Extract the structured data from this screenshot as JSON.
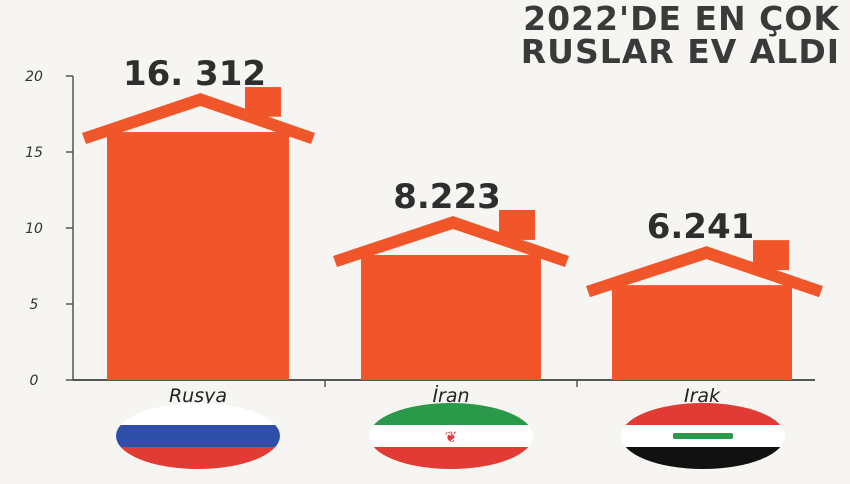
{
  "title_lines": [
    "2022'DE EN ÇOK",
    "RUSLAR EV ALDI"
  ],
  "chart_data": {
    "type": "bar",
    "title": "2022'DE EN ÇOK RUSLAR EV ALDI",
    "categories": [
      "Rusya",
      "İran",
      "Irak"
    ],
    "values": [
      16.312,
      8.223,
      6.241
    ],
    "value_labels": [
      "16. 312",
      "8.223",
      "6.241"
    ],
    "y_ticks": [
      0,
      5,
      10,
      15,
      20
    ],
    "y_tick_labels": [
      "0",
      "5",
      "10",
      "15",
      "20"
    ],
    "ylim": [
      0,
      20
    ],
    "grid": false,
    "legend": "none",
    "bar_style": "house",
    "colors": {
      "bar": "#f1552a",
      "roof": "#f1552a",
      "axis": "#555555",
      "title": "#3a3a3a"
    }
  },
  "flags": [
    {
      "country": "Rusya",
      "icon": "russia-flag-icon",
      "colors": [
        "#ffffff",
        "#2f4ea8",
        "#e23a35"
      ]
    },
    {
      "country": "İran",
      "icon": "iran-flag-icon",
      "colors": [
        "#2a9a4a",
        "#ffffff",
        "#e23a35"
      ]
    },
    {
      "country": "Irak",
      "icon": "iraq-flag-icon",
      "colors": [
        "#e23a35",
        "#ffffff",
        "#111111"
      ]
    }
  ]
}
